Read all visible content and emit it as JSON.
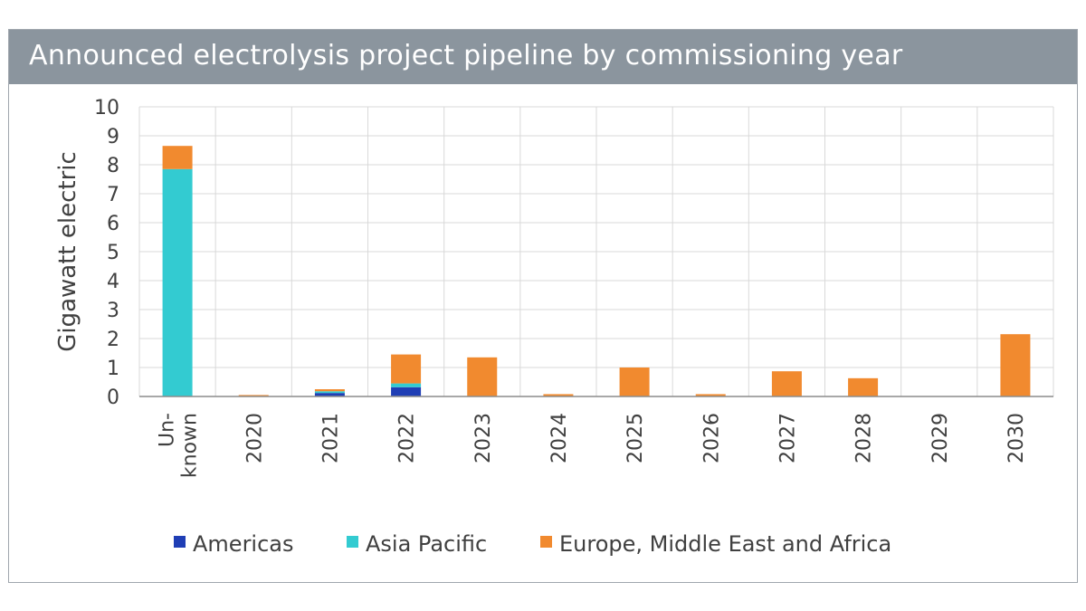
{
  "chart_data": {
    "type": "bar",
    "stacked": true,
    "title": "Announced electrolysis project pipeline by commissioning year",
    "xlabel": "",
    "ylabel": "Gigawatt electric",
    "ylim": [
      0,
      10
    ],
    "yticks": [
      0,
      1,
      2,
      3,
      4,
      5,
      6,
      7,
      8,
      9,
      10
    ],
    "grid": true,
    "legend_position": "bottom",
    "categories": [
      "Un-known",
      "2020",
      "2021",
      "2022",
      "2023",
      "2024",
      "2025",
      "2026",
      "2027",
      "2028",
      "2029",
      "2030"
    ],
    "category_lines": [
      [
        "Un-",
        "known"
      ],
      [
        "2020"
      ],
      [
        "2021"
      ],
      [
        "2022"
      ],
      [
        "2023"
      ],
      [
        "2024"
      ],
      [
        "2025"
      ],
      [
        "2026"
      ],
      [
        "2027"
      ],
      [
        "2028"
      ],
      [
        "2029"
      ],
      [
        "2030"
      ]
    ],
    "series": [
      {
        "name": "Americas",
        "color": "#1f3eb5",
        "values": [
          0,
          0,
          0.12,
          0.32,
          0,
          0,
          0,
          0,
          0,
          0,
          0,
          0
        ]
      },
      {
        "name": "Asia Pacific",
        "color": "#33cbd1",
        "values": [
          7.85,
          0,
          0.06,
          0.13,
          0,
          0,
          0,
          0,
          0,
          0,
          0,
          0
        ]
      },
      {
        "name": "Europe, Middle East and Africa",
        "color": "#f18a2f",
        "values": [
          0.8,
          0.05,
          0.07,
          1.0,
          1.35,
          0.08,
          1.0,
          0.08,
          0.87,
          0.63,
          0,
          2.15
        ]
      }
    ]
  }
}
